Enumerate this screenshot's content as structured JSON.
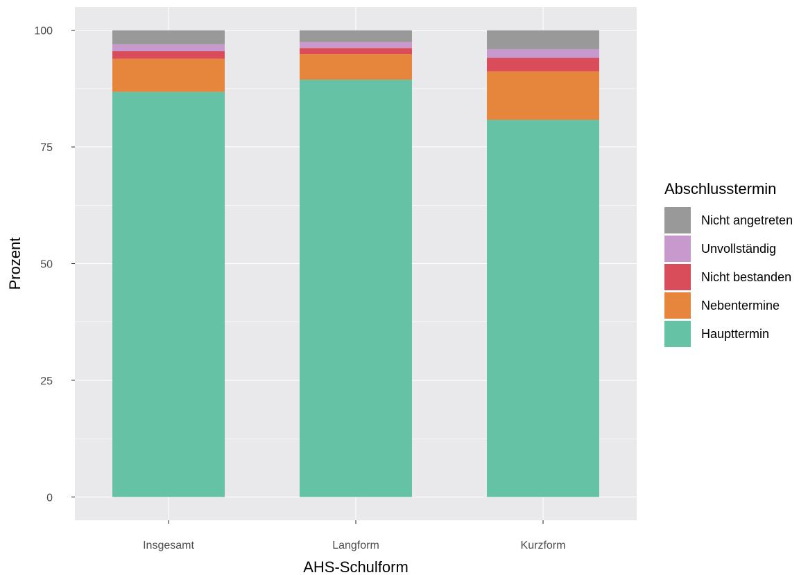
{
  "chart_data": {
    "type": "bar",
    "stacked": true,
    "categories": [
      "Insgesamt",
      "Langform",
      "Kurzform"
    ],
    "series": [
      {
        "name": "Haupttermin",
        "color": "#66c2a5",
        "values": [
          86.8,
          89.4,
          80.8
        ]
      },
      {
        "name": "Nebentermine",
        "color": "#e6853c",
        "values": [
          7.1,
          5.5,
          10.4
        ]
      },
      {
        "name": "Nicht bestanden",
        "color": "#d94c5a",
        "values": [
          1.6,
          1.3,
          2.9
        ]
      },
      {
        "name": "Unvollständig",
        "color": "#c799cc",
        "values": [
          1.5,
          1.3,
          1.8
        ]
      },
      {
        "name": "Nicht angetreten",
        "color": "#999999",
        "values": [
          3.0,
          2.5,
          4.1
        ]
      }
    ],
    "legend_order": [
      "Nicht angetreten",
      "Unvollständig",
      "Nicht bestanden",
      "Nebentermine",
      "Haupttermin"
    ],
    "xlabel": "AHS-Schulform",
    "ylabel": "Prozent",
    "legend_title": "Abschlusstermin",
    "ylim": [
      -5,
      105
    ],
    "yticks": [
      "0",
      "25",
      "50",
      "75",
      "100"
    ],
    "grid": true,
    "legend_position": "right",
    "panel_color": "#e9e9ec"
  }
}
